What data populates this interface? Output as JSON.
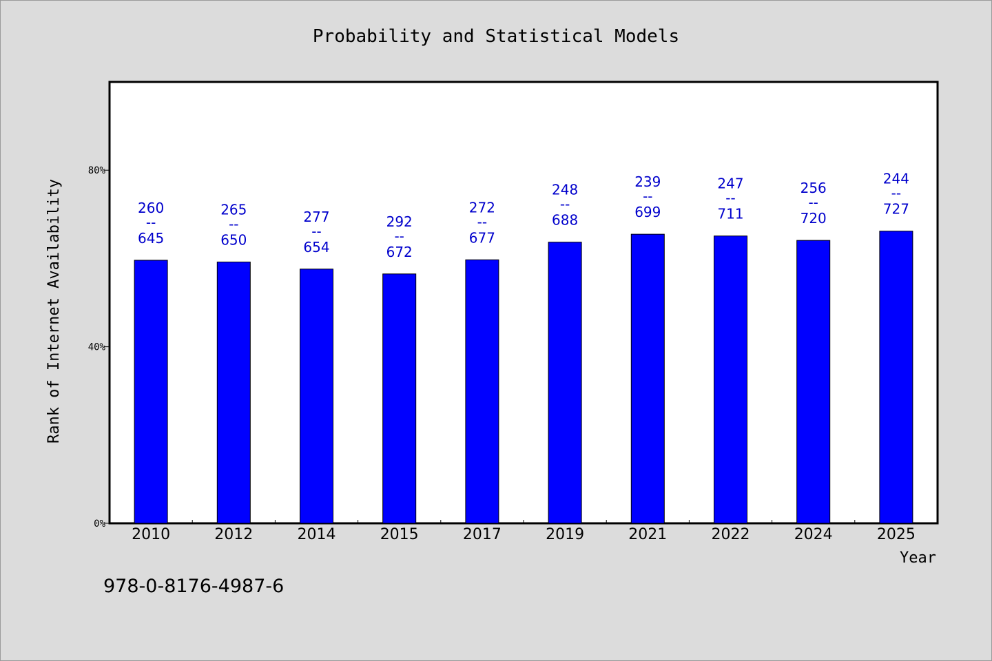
{
  "chart_data": {
    "type": "bar",
    "title": "Probability and Statistical Models",
    "xlabel": "Year",
    "ylabel": "Rank of Internet Availability",
    "ylim": [
      0,
      100
    ],
    "yticks": [
      0,
      40,
      80
    ],
    "ytick_labels": [
      "0%",
      "40%",
      "80%"
    ],
    "categories": [
      "2010",
      "2012",
      "2014",
      "2015",
      "2017",
      "2019",
      "2021",
      "2022",
      "2024",
      "2025"
    ],
    "values": [
      59.6,
      59.2,
      57.6,
      56.5,
      59.7,
      63.7,
      65.5,
      65.1,
      64.1,
      66.2
    ],
    "labels_top": [
      "260",
      "265",
      "277",
      "292",
      "272",
      "248",
      "239",
      "247",
      "256",
      "244"
    ],
    "labels_bottom": [
      "645",
      "650",
      "654",
      "672",
      "677",
      "688",
      "699",
      "711",
      "720",
      "727"
    ],
    "label_separator": "--",
    "bar_color": "#0000ff",
    "label_color": "#0000cc",
    "grid": false
  },
  "footer": {
    "isbn": "978-0-8176-4987-6"
  }
}
